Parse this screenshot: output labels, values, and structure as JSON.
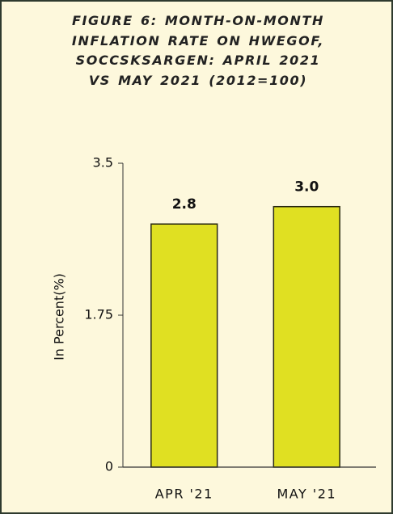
{
  "chart_data": {
    "type": "bar",
    "title": "FIGURE 6: MONTH-ON-MONTH INFLATION RATE ON HWEGOF, SOCCSKSARGEN: APRIL 2021 VS MAY 2021 (2012=100)",
    "y_label": "In Percent(%)",
    "categories": [
      "APR '21",
      "MAY '21"
    ],
    "values": [
      2.8,
      3.0
    ],
    "value_labels": [
      "2.8",
      "3.0"
    ],
    "color": "#e0e022",
    "ylim": [
      0,
      3.5
    ],
    "yticks": [
      0,
      1.75,
      3.5
    ]
  }
}
